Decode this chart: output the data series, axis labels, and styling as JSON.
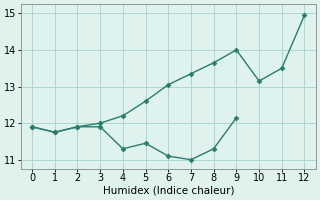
{
  "line1_x": [
    0,
    1,
    2,
    3,
    4,
    5,
    6,
    7,
    8,
    9,
    10,
    11,
    12
  ],
  "line1_y": [
    11.9,
    11.75,
    11.9,
    12.0,
    12.2,
    12.6,
    13.05,
    13.35,
    13.65,
    14.0,
    13.15,
    13.5,
    14.95
  ],
  "line2_x": [
    0,
    1,
    2,
    3,
    4,
    5,
    6,
    7,
    8,
    9
  ],
  "line2_y": [
    11.9,
    11.75,
    11.9,
    11.9,
    11.3,
    11.45,
    11.1,
    11.0,
    11.3,
    12.15
  ],
  "line_color": "#2a7d6e",
  "bg_color": "#dff2ee",
  "grid_color": "#acd8d0",
  "xlabel": "Humidex (Indice chaleur)",
  "xlim": [
    -0.5,
    12.5
  ],
  "ylim": [
    10.75,
    15.25
  ],
  "xticks": [
    0,
    1,
    2,
    3,
    4,
    5,
    6,
    7,
    8,
    9,
    10,
    11,
    12
  ],
  "yticks": [
    11,
    12,
    13,
    14,
    15
  ],
  "marker": "D",
  "markersize": 2.5,
  "linewidth": 1.0,
  "xlabel_fontsize": 7.5,
  "tick_fontsize": 7
}
